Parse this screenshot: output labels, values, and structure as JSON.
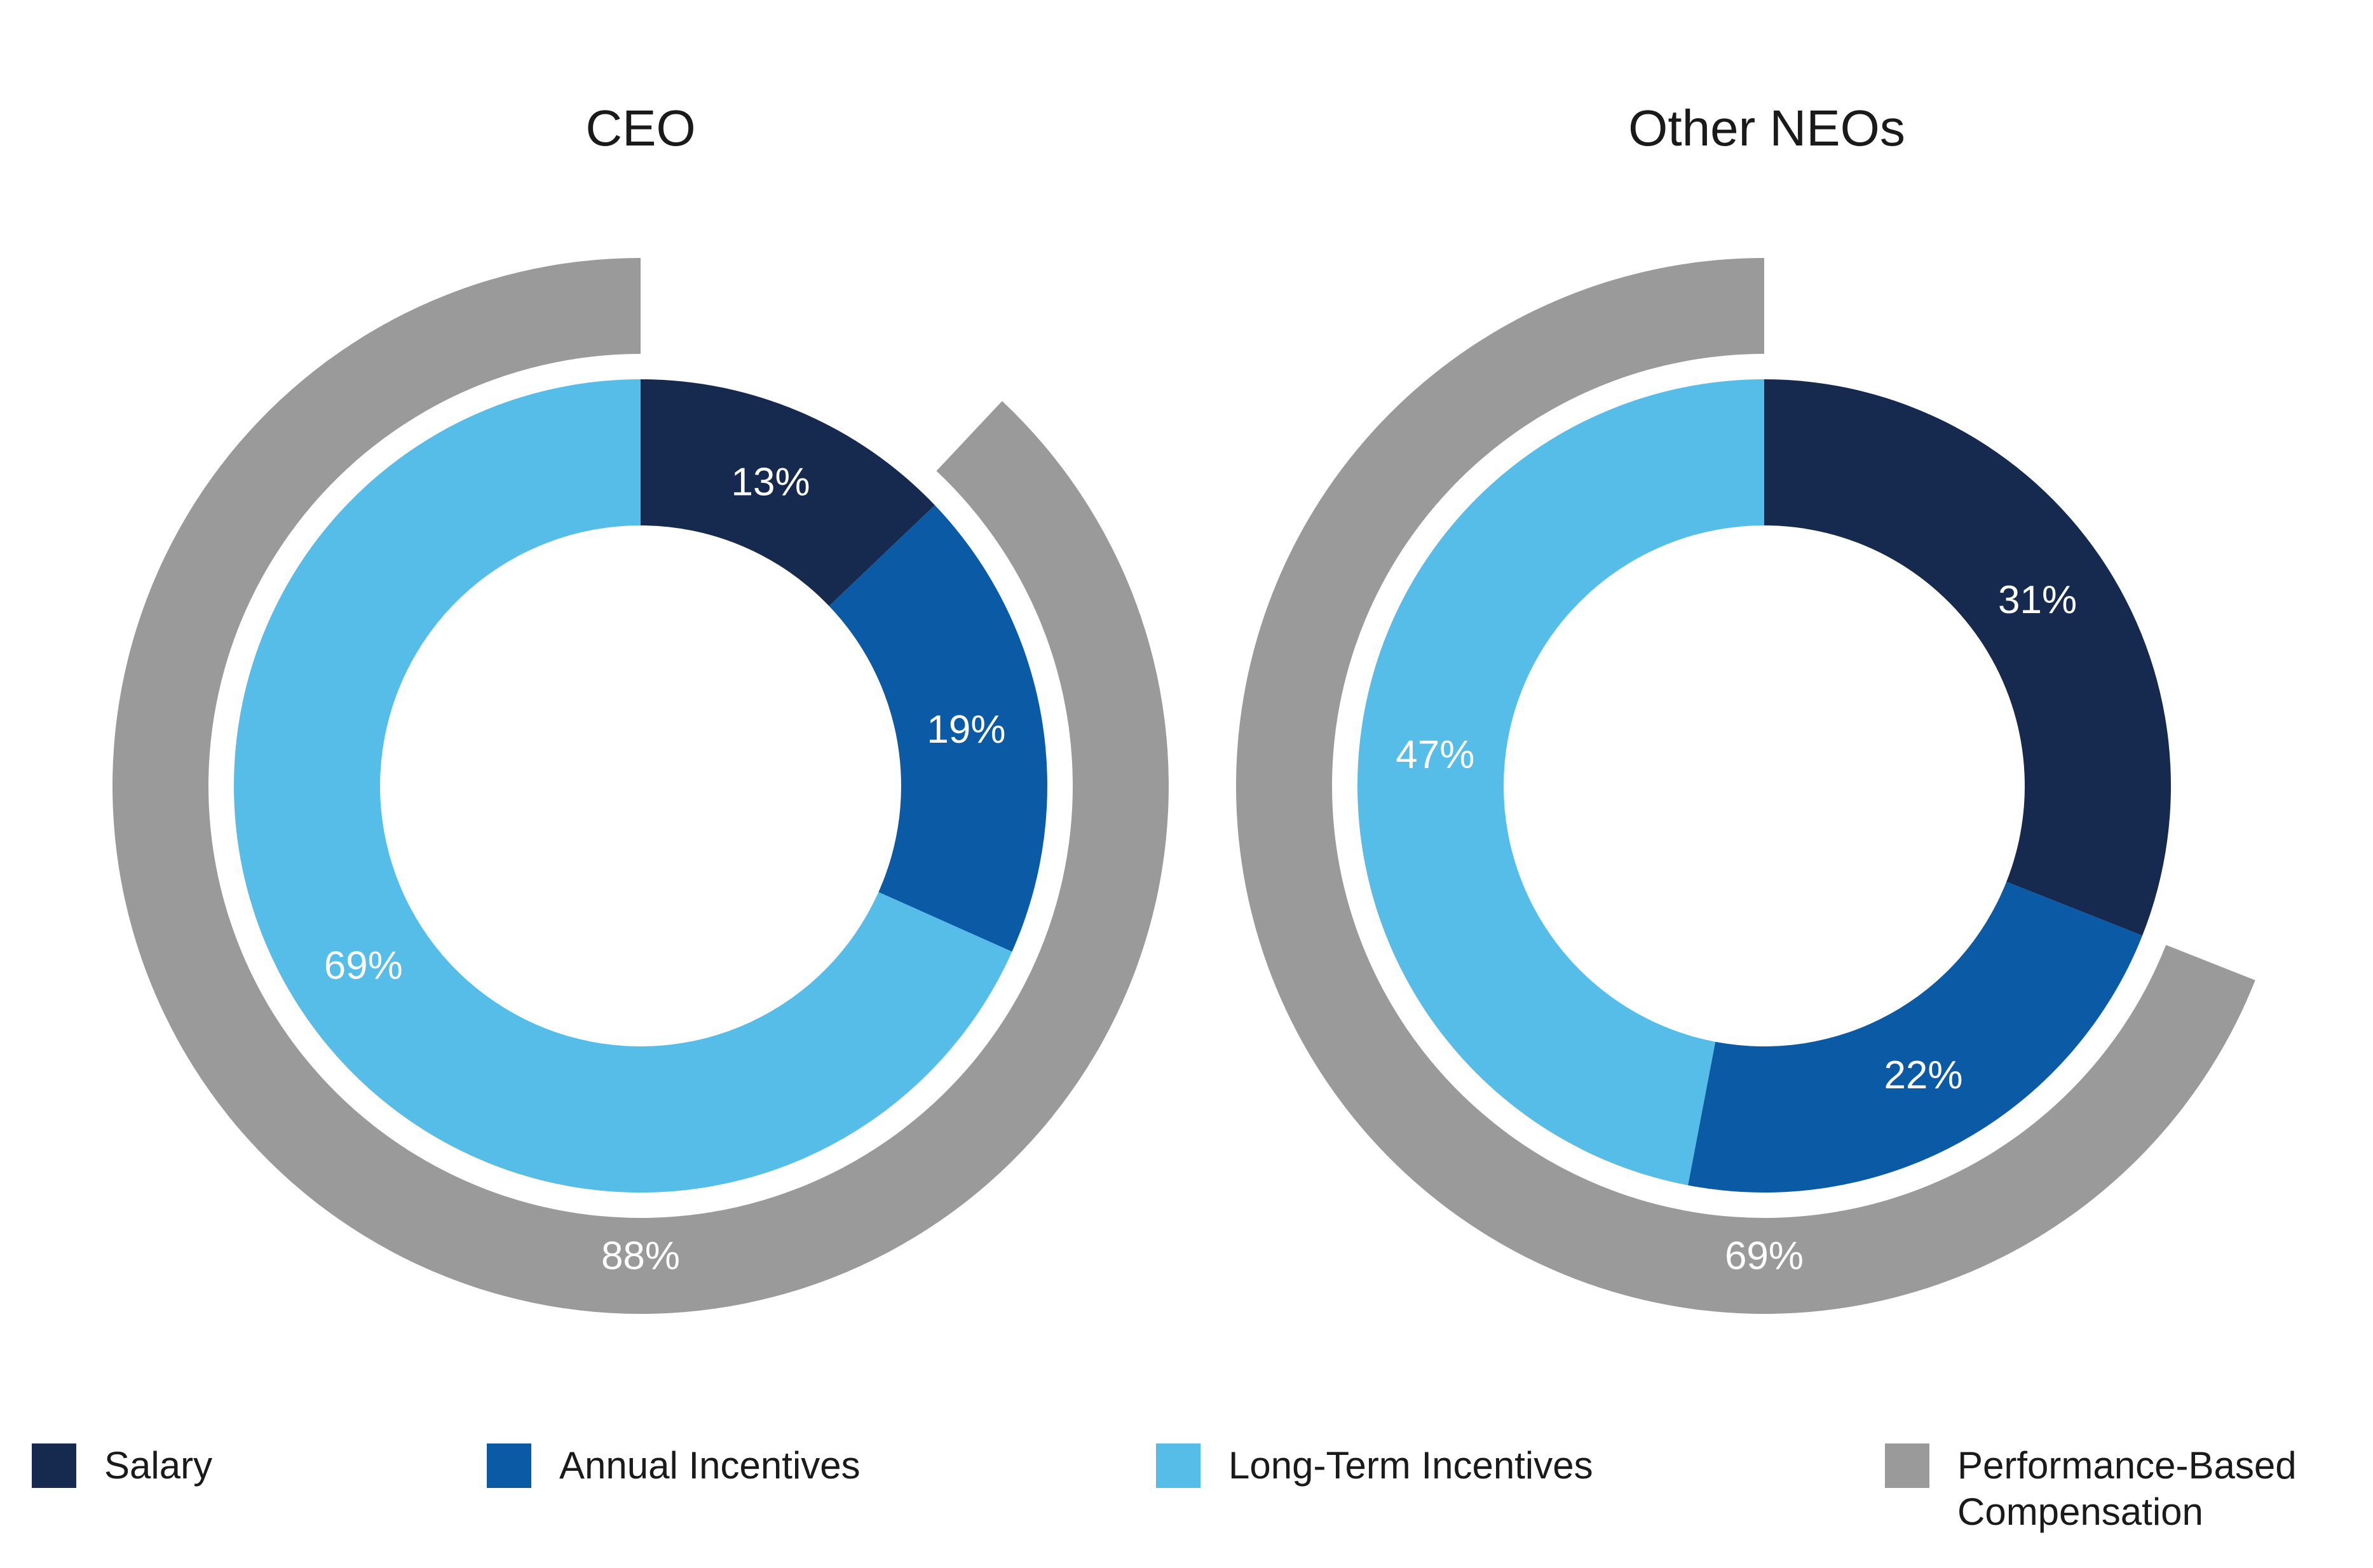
{
  "titles": {
    "left": "CEO",
    "right": "Other NEOs"
  },
  "colors": {
    "salary": "#16294E",
    "annual": "#0B5AA6",
    "lti": "#55BDE8",
    "performance": "#9A9A9B",
    "segment_label": "#FFFFFF",
    "title_text": "#1A1A1A",
    "background": "#FFFFFF"
  },
  "legend": [
    {
      "label": "Salary",
      "color_key": "salary"
    },
    {
      "label": "Annual Incentives",
      "color_key": "annual"
    },
    {
      "label": "Long-Term Incentives",
      "color_key": "lti"
    },
    {
      "label": "Performance-Based Compensation",
      "color_key": "performance"
    }
  ],
  "chart_data": [
    {
      "type": "pie",
      "variant": "donut-with-outer-arc",
      "title": "CEO",
      "segments": [
        {
          "label": "Salary",
          "value": 13,
          "display": "13%",
          "color_key": "salary"
        },
        {
          "label": "Annual Incentives",
          "value": 19,
          "display": "19%",
          "color_key": "annual"
        },
        {
          "label": "Long-Term Incentives",
          "value": 69,
          "display": "69%",
          "color_key": "lti"
        }
      ],
      "outer_arc": {
        "label": "Performance-Based Compensation",
        "value": 88,
        "display": "88%",
        "color_key": "performance"
      },
      "legend_position": "bottom",
      "grid": false
    },
    {
      "type": "pie",
      "variant": "donut-with-outer-arc",
      "title": "Other NEOs",
      "segments": [
        {
          "label": "Salary",
          "value": 31,
          "display": "31%",
          "color_key": "salary"
        },
        {
          "label": "Annual Incentives",
          "value": 22,
          "display": "22%",
          "color_key": "annual"
        },
        {
          "label": "Long-Term Incentives",
          "value": 47,
          "display": "47%",
          "color_key": "lti"
        }
      ],
      "outer_arc": {
        "label": "Performance-Based Compensation",
        "value": 69,
        "display": "69%",
        "color_key": "performance"
      },
      "legend_position": "bottom",
      "grid": false
    }
  ]
}
